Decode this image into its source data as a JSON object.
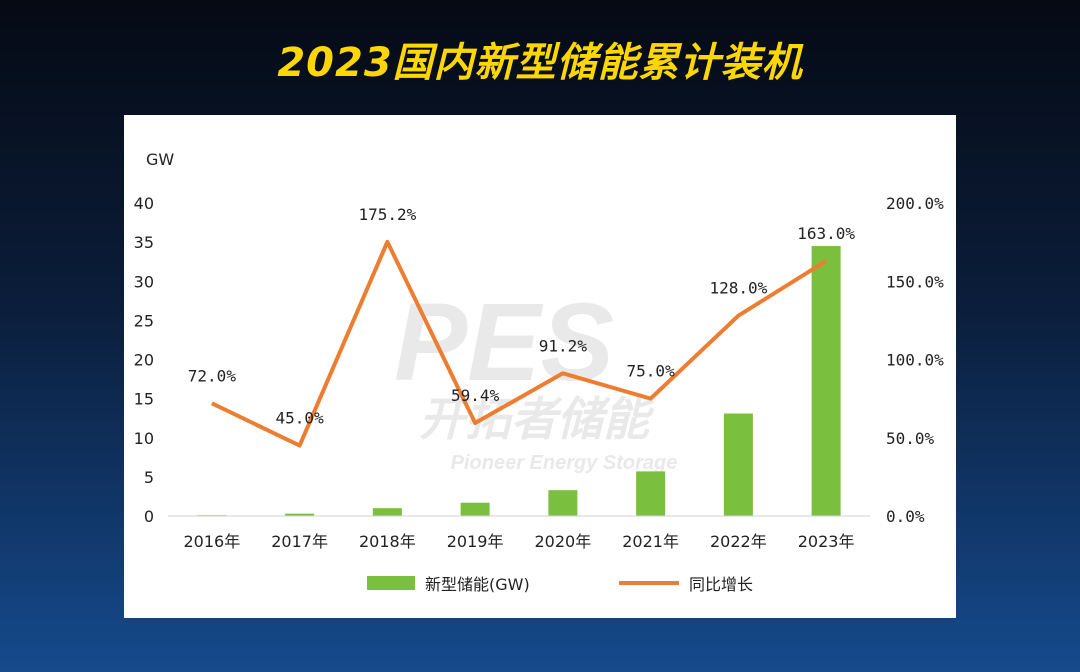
{
  "headline": "2023国内新型储能累计装机",
  "watermark": {
    "logo": "PES",
    "cn": "开拓者储能",
    "en": "Pioneer Energy Storage"
  },
  "colors": {
    "bar": "#7bbf3f",
    "line": "#ed7d31",
    "headline": "#ffd700"
  },
  "chart_data": {
    "type": "bar+line",
    "categories": [
      "2016年",
      "2017年",
      "2018年",
      "2019年",
      "2020年",
      "2021年",
      "2022年",
      "2023年"
    ],
    "unit_label": "GW",
    "y_left": {
      "min": 0,
      "max": 40,
      "ticks": [
        "0",
        "5",
        "10",
        "15",
        "20",
        "25",
        "30",
        "35",
        "40"
      ]
    },
    "y_right": {
      "min": 0,
      "max": 200,
      "ticks": [
        "0.0%",
        "50.0%",
        "100.0%",
        "150.0%",
        "200.0%"
      ]
    },
    "series": [
      {
        "name": "新型储能(GW)",
        "type": "bar",
        "axis": "left",
        "values": [
          0.1,
          0.3,
          1.0,
          1.7,
          3.3,
          5.7,
          13.1,
          34.5
        ]
      },
      {
        "name": "同比增长",
        "type": "line",
        "axis": "right",
        "values": [
          72.0,
          45.0,
          175.2,
          59.4,
          91.2,
          75.0,
          128.0,
          163.0
        ],
        "labels": [
          "72.0%",
          "45.0%",
          "175.2%",
          "59.4%",
          "91.2%",
          "75.0%",
          "128.0%",
          "163.0%"
        ]
      }
    ],
    "legend_position": "bottom",
    "grid": false
  }
}
